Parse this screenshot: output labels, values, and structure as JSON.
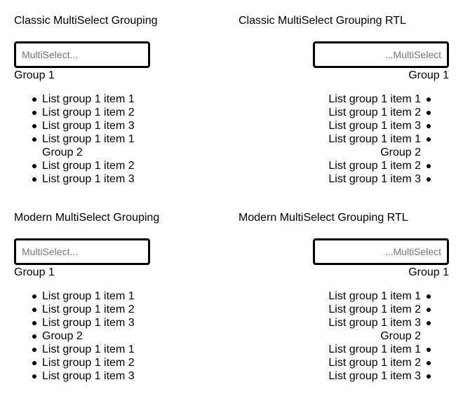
{
  "panels": {
    "classic_ltr": {
      "title": "Classic MultiSelect Grouping",
      "placeholder": "MultiSelect...",
      "group_header": "Group 1",
      "items": [
        "List group 1 item 1",
        "List group 1 item 2",
        "List group 1 item 3",
        "List group 1 item 1",
        "Group 2",
        "List group 1 item 2",
        "List group 1 item 3"
      ]
    },
    "classic_rtl": {
      "title": "Classic MultiSelect Grouping RTL",
      "placeholder": "MultiSelect...",
      "group_header": "Group 1",
      "items": [
        "List group 1 item 1",
        "List group 1 item 2",
        "List group 1 item 3",
        "List group 1 item 1",
        "Group 2",
        "List group 1 item 2",
        "List group 1 item 3"
      ]
    },
    "modern_ltr": {
      "title": "Modern MultiSelect Grouping",
      "placeholder": "MultiSelect...",
      "group_header": "Group 1",
      "items": [
        "List group 1 item 1",
        "List group 1 item 2",
        "List group 1 item 3",
        "Group 2",
        "List group 1 item 1",
        "List group 1 item 2",
        "List group 1 item 3"
      ]
    },
    "modern_rtl": {
      "title": "Modern MultiSelect Grouping RTL",
      "placeholder": "MultiSelect...",
      "group_header": "Group 1",
      "items": [
        "List group 1 item 1",
        "List group 1 item 2",
        "List group 1 item 3",
        "Group 2",
        "List group 1 item 1",
        "List group 1 item 2",
        "List group 1 item 3"
      ]
    }
  }
}
